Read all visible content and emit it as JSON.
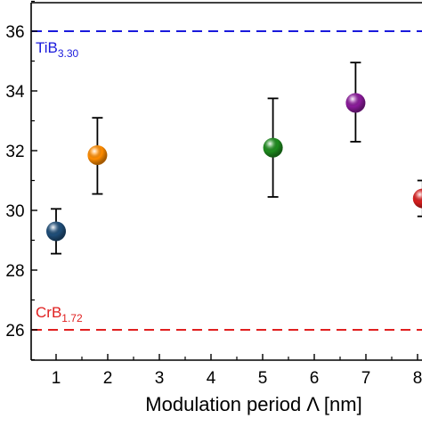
{
  "chart_data": {
    "type": "scatter",
    "title": "",
    "xlabel": "Modulation period Λ [nm]",
    "ylabel": "",
    "xlim": [
      0.5,
      8.5
    ],
    "ylim": [
      25,
      37
    ],
    "x_ticks": [
      "1",
      "2",
      "3",
      "4",
      "5",
      "6",
      "7",
      "8"
    ],
    "y_ticks": [
      "26",
      "28",
      "30",
      "32",
      "34",
      "36"
    ],
    "grid": false,
    "points": [
      {
        "x": 1.0,
        "y": 29.3,
        "err_low": 28.55,
        "err_high": 30.05,
        "color": "#1f4e79"
      },
      {
        "x": 1.8,
        "y": 31.85,
        "err_low": 30.55,
        "err_high": 33.1,
        "color": "#ff8c00"
      },
      {
        "x": 5.2,
        "y": 32.1,
        "err_low": 30.45,
        "err_high": 33.75,
        "color": "#1e8c1e"
      },
      {
        "x": 6.8,
        "y": 33.6,
        "err_low": 32.3,
        "err_high": 34.95,
        "color": "#8b1a9b"
      },
      {
        "x": 8.1,
        "y": 30.4,
        "err_low": 29.8,
        "err_high": 31.0,
        "color": "#d81e1e"
      }
    ],
    "reference_lines": [
      {
        "y": 36,
        "label_main": "TiB",
        "label_sub": "3.30",
        "color": "#1a1adc"
      },
      {
        "y": 26,
        "label_main": "CrB",
        "label_sub": "1.72",
        "color": "#e02020"
      }
    ]
  }
}
